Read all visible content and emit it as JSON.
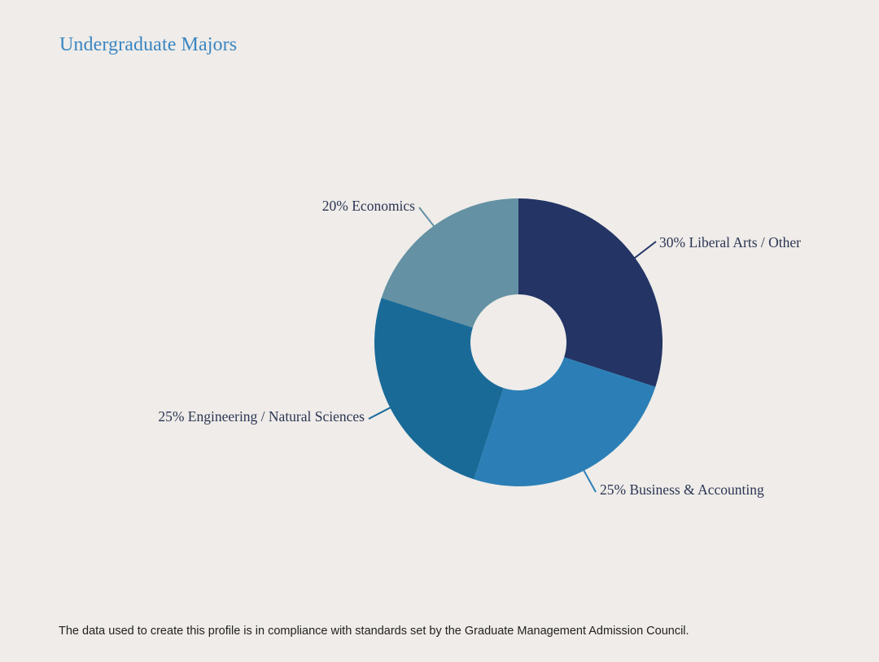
{
  "page": {
    "title": "Undergraduate Majors",
    "footnote": "The data used to create this profile is in compliance with standards set by the Graduate Management Admission Council."
  },
  "chart_data": {
    "type": "pie",
    "donut": true,
    "title": "Undergraduate Majors",
    "start_angle_deg": 0,
    "direction": "clockwise",
    "slices": [
      {
        "label": "30% Liberal Arts / Other",
        "category": "Liberal Arts / Other",
        "value": 30,
        "color": "#233465"
      },
      {
        "label": "25% Business & Accounting",
        "category": "Business & Accounting",
        "value": 25,
        "color": "#2b7fb6"
      },
      {
        "label": "25% Engineering / Natural Sciences",
        "category": "Engineering / Natural Sciences",
        "value": 25,
        "color": "#1a6a98"
      },
      {
        "label": "20% Economics",
        "category": "Economics",
        "value": 20,
        "color": "#6491a3"
      }
    ]
  }
}
